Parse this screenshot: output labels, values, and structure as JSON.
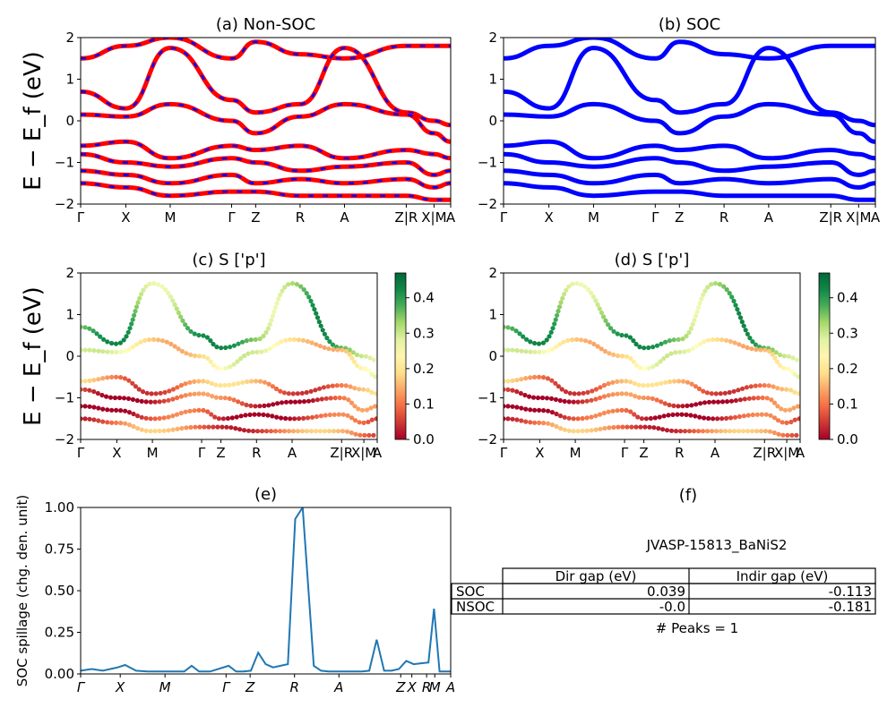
{
  "chart_data": [
    {
      "id": "a",
      "type": "line",
      "title": "(a) Non-SOC",
      "ylabel": "E − E_f (eV)",
      "ylim": [
        -2,
        2
      ],
      "yticks": [
        "−2",
        "−1",
        "0",
        "1",
        "2"
      ],
      "xticks": [
        "Γ",
        "X",
        "M",
        "Γ",
        "Z",
        "R",
        "A",
        "Z|R",
        "X|M",
        "A"
      ],
      "series": [
        {
          "values": [
            1.5,
            1.8,
            2.0,
            1.5,
            1.9,
            1.6,
            1.5,
            1.8,
            1.8,
            1.8
          ]
        },
        {
          "values": [
            0.7,
            0.3,
            1.75,
            0.5,
            0.2,
            0.4,
            1.75,
            0.2,
            0.0,
            -0.1
          ]
        },
        {
          "values": [
            0.15,
            0.1,
            0.4,
            0.0,
            -0.3,
            0.1,
            0.4,
            0.15,
            -0.3,
            -0.5
          ]
        },
        {
          "values": [
            -0.6,
            -0.5,
            -0.9,
            -0.6,
            -0.7,
            -0.6,
            -0.9,
            -0.7,
            -0.8,
            -0.9
          ]
        },
        {
          "values": [
            -0.8,
            -1.0,
            -1.1,
            -0.9,
            -1.0,
            -1.2,
            -1.1,
            -1.0,
            -1.3,
            -1.2
          ]
        },
        {
          "values": [
            -1.2,
            -1.3,
            -1.5,
            -1.3,
            -1.5,
            -1.4,
            -1.5,
            -1.4,
            -1.6,
            -1.5
          ]
        },
        {
          "values": [
            -1.5,
            -1.6,
            -1.8,
            -1.7,
            -1.7,
            -1.8,
            -1.8,
            -1.8,
            -1.9,
            -1.9
          ]
        }
      ],
      "colors": {
        "line": "#ff0000",
        "dash": "#0000ff"
      }
    },
    {
      "id": "b",
      "type": "line",
      "title": "(b) SOC",
      "ylim": [
        -2,
        2
      ],
      "yticks": [
        "−2",
        "−1",
        "0",
        "1",
        "2"
      ],
      "xticks": [
        "Γ",
        "X",
        "M",
        "Γ",
        "Z",
        "R",
        "A",
        "Z|R",
        "X|M",
        "A"
      ],
      "series": [
        {
          "values": [
            1.5,
            1.8,
            2.0,
            1.5,
            1.9,
            1.6,
            1.5,
            1.8,
            1.8,
            1.8
          ]
        },
        {
          "values": [
            0.7,
            0.3,
            1.75,
            0.5,
            0.2,
            0.4,
            1.75,
            0.2,
            0.0,
            -0.1
          ]
        },
        {
          "values": [
            0.15,
            0.1,
            0.4,
            0.0,
            -0.3,
            0.1,
            0.4,
            0.15,
            -0.3,
            -0.5
          ]
        },
        {
          "values": [
            -0.6,
            -0.5,
            -0.9,
            -0.6,
            -0.7,
            -0.6,
            -0.9,
            -0.7,
            -0.8,
            -0.9
          ]
        },
        {
          "values": [
            -0.8,
            -1.0,
            -1.1,
            -0.9,
            -1.0,
            -1.2,
            -1.1,
            -1.0,
            -1.3,
            -1.2
          ]
        },
        {
          "values": [
            -1.2,
            -1.3,
            -1.5,
            -1.3,
            -1.5,
            -1.4,
            -1.5,
            -1.4,
            -1.6,
            -1.5
          ]
        },
        {
          "values": [
            -1.5,
            -1.6,
            -1.8,
            -1.7,
            -1.7,
            -1.8,
            -1.8,
            -1.8,
            -1.9,
            -1.9
          ]
        }
      ],
      "colors": {
        "line": "#0000ff"
      }
    },
    {
      "id": "c",
      "type": "scatter",
      "title": "(c)  S ['p']",
      "ylabel": "E − E_f (eV)",
      "ylim": [
        -2,
        2
      ],
      "yticks": [
        "−2",
        "−1",
        "0",
        "1",
        "2"
      ],
      "xticks": [
        "Γ",
        "X",
        "M",
        "Γ",
        "Z",
        "R",
        "A",
        "Z|R",
        "X|M",
        "A"
      ],
      "colorbar": {
        "range": [
          0.0,
          0.47
        ],
        "ticks": [
          "0.0",
          "0.1",
          "0.2",
          "0.3",
          "0.4"
        ],
        "colormap": "RdYlGn"
      },
      "series": [
        {
          "values": [
            0.7,
            0.3,
            1.75,
            0.5,
            0.2,
            0.4,
            1.75,
            0.2,
            0.0,
            -0.1
          ],
          "weight": 0.35
        },
        {
          "values": [
            0.15,
            0.1,
            0.4,
            0.0,
            -0.3,
            0.1,
            0.4,
            0.15,
            -0.3,
            -0.5
          ],
          "weight": 0.22
        },
        {
          "values": [
            -0.6,
            -0.5,
            -0.9,
            -0.6,
            -0.7,
            -0.6,
            -0.9,
            -0.7,
            -0.8,
            -0.9
          ],
          "weight": 0.12
        },
        {
          "values": [
            -0.8,
            -1.0,
            -1.1,
            -0.9,
            -1.0,
            -1.2,
            -1.1,
            -1.0,
            -1.3,
            -1.2
          ],
          "weight": 0.06
        },
        {
          "values": [
            -1.2,
            -1.3,
            -1.5,
            -1.3,
            -1.5,
            -1.4,
            -1.5,
            -1.4,
            -1.6,
            -1.5
          ],
          "weight": 0.04
        },
        {
          "values": [
            -1.5,
            -1.6,
            -1.8,
            -1.7,
            -1.7,
            -1.8,
            -1.8,
            -1.8,
            -1.9,
            -1.9
          ],
          "weight": 0.1
        }
      ]
    },
    {
      "id": "d",
      "type": "scatter",
      "title": "(d) S ['p']",
      "ylim": [
        -2,
        2
      ],
      "yticks": [
        "−2",
        "−1",
        "0",
        "1",
        "2"
      ],
      "xticks": [
        "Γ",
        "X",
        "M",
        "Γ",
        "Z",
        "R",
        "A",
        "Z|R",
        "X|M",
        "A"
      ],
      "colorbar": {
        "range": [
          0.0,
          0.47
        ],
        "ticks": [
          "0.0",
          "0.1",
          "0.2",
          "0.3",
          "0.4"
        ],
        "colormap": "RdYlGn"
      },
      "series": [
        {
          "values": [
            0.7,
            0.3,
            1.75,
            0.5,
            0.2,
            0.4,
            1.75,
            0.2,
            0.0,
            -0.1
          ],
          "weight": 0.35
        },
        {
          "values": [
            0.15,
            0.1,
            0.4,
            0.0,
            -0.3,
            0.1,
            0.4,
            0.15,
            -0.3,
            -0.5
          ],
          "weight": 0.22
        },
        {
          "values": [
            -0.6,
            -0.5,
            -0.9,
            -0.6,
            -0.7,
            -0.6,
            -0.9,
            -0.7,
            -0.8,
            -0.9
          ],
          "weight": 0.12
        },
        {
          "values": [
            -0.8,
            -1.0,
            -1.1,
            -0.9,
            -1.0,
            -1.2,
            -1.1,
            -1.0,
            -1.3,
            -1.2
          ],
          "weight": 0.06
        },
        {
          "values": [
            -1.2,
            -1.3,
            -1.5,
            -1.3,
            -1.5,
            -1.4,
            -1.5,
            -1.4,
            -1.6,
            -1.5
          ],
          "weight": 0.04
        },
        {
          "values": [
            -1.5,
            -1.6,
            -1.8,
            -1.7,
            -1.7,
            -1.8,
            -1.8,
            -1.8,
            -1.9,
            -1.9
          ],
          "weight": 0.1
        }
      ]
    },
    {
      "id": "e",
      "type": "line",
      "title": "(e)",
      "ylabel": "SOC spillage (chg. den. unit)",
      "ylim": [
        0,
        1.02
      ],
      "yticks": [
        "0.00",
        "0.25",
        "0.50",
        "0.75",
        "1.00"
      ],
      "xticks": [
        "Γ",
        "X",
        "M",
        "Γ",
        "Z",
        "R",
        "A",
        "Z",
        "X",
        "R",
        "M",
        "A"
      ],
      "x": [
        0,
        0.03,
        0.06,
        0.1,
        0.12,
        0.15,
        0.18,
        0.2,
        0.22,
        0.25,
        0.28,
        0.3,
        0.32,
        0.35,
        0.4,
        0.42,
        0.44,
        0.46,
        0.48,
        0.5,
        0.52,
        0.54,
        0.56,
        0.58,
        0.6,
        0.63,
        0.65,
        0.67,
        0.69,
        0.71,
        0.73,
        0.75,
        0.76,
        0.78,
        0.8,
        0.82,
        0.84,
        0.86,
        0.88,
        0.9,
        0.92,
        0.94,
        0.955,
        0.97,
        1.0
      ],
      "values": [
        0.02,
        0.03,
        0.02,
        0.04,
        0.055,
        0.02,
        0.015,
        0.015,
        0.015,
        0.015,
        0.015,
        0.05,
        0.015,
        0.015,
        0.05,
        0.015,
        0.015,
        0.02,
        0.13,
        0.06,
        0.04,
        0.05,
        0.06,
        0.95,
        1.02,
        0.05,
        0.02,
        0.015,
        0.015,
        0.015,
        0.015,
        0.015,
        0.015,
        0.02,
        0.21,
        0.02,
        0.02,
        0.03,
        0.08,
        0.06,
        0.065,
        0.07,
        0.4,
        0.015,
        0.015
      ],
      "colors": {
        "line": "#1f77b4"
      }
    }
  ],
  "panel_f": {
    "title": "(f)",
    "material": "JVASP-15813_BaNiS2",
    "table": {
      "headers": [
        "Dir gap (eV)",
        "Indir gap (eV)"
      ],
      "rows": [
        {
          "label": "SOC",
          "dir": "0.039",
          "indir": "-0.113"
        },
        {
          "label": "NSOC",
          "dir": "-0.0",
          "indir": "-0.181"
        }
      ]
    },
    "peaks": "# Peaks = 1"
  }
}
